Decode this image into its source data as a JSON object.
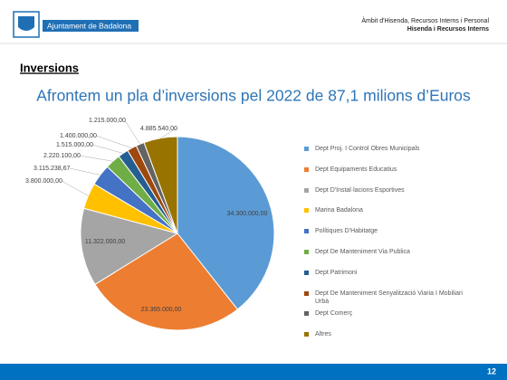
{
  "header": {
    "logo_text": "Ajuntament de Badalona",
    "area": "Àmbit d'Hisenda, Recursos Interns i Personal",
    "department": "Hisenda i Recursos Interns"
  },
  "section": "Inversions",
  "chart_data": {
    "type": "pie",
    "title": "Afrontem un pla d’inversions pel 2022 de 87,1 milions d’Euros",
    "categories": [
      "Dept Proj. I Control Obres Municipals",
      "Dept Equipaments Educatius",
      "Dept D'Instal·lacions Esportives",
      "Marina Badalona",
      "Polítiques D'Habitatge",
      "Dept De Manteniment Via Publica",
      "Dept Patrimoni",
      "Dept De Manteniment Senyalització Viaria I Mobiliari Urbà",
      "Dept Comerç",
      "Altres"
    ],
    "values": [
      34300000,
      23365000,
      11322000,
      3800000,
      3115238.67,
      2220100,
      1515000,
      1400000,
      1215000,
      4885540
    ],
    "value_labels": [
      "34.300.000,00",
      "23.365.000,00",
      "11.322.000,00",
      "3.800.000,00",
      "3.115.238,67",
      "2.220.100,00",
      "1.515.000,00",
      "1.400.000,00",
      "1.215.000,00",
      "4.885.540,00"
    ],
    "colors": [
      "#5b9bd5",
      "#ed7d31",
      "#a5a5a5",
      "#ffc000",
      "#4472c4",
      "#70ad47",
      "#255e91",
      "#9e480e",
      "#636363",
      "#997300"
    ],
    "legend": "right"
  },
  "footer": {
    "page_number": 12
  }
}
